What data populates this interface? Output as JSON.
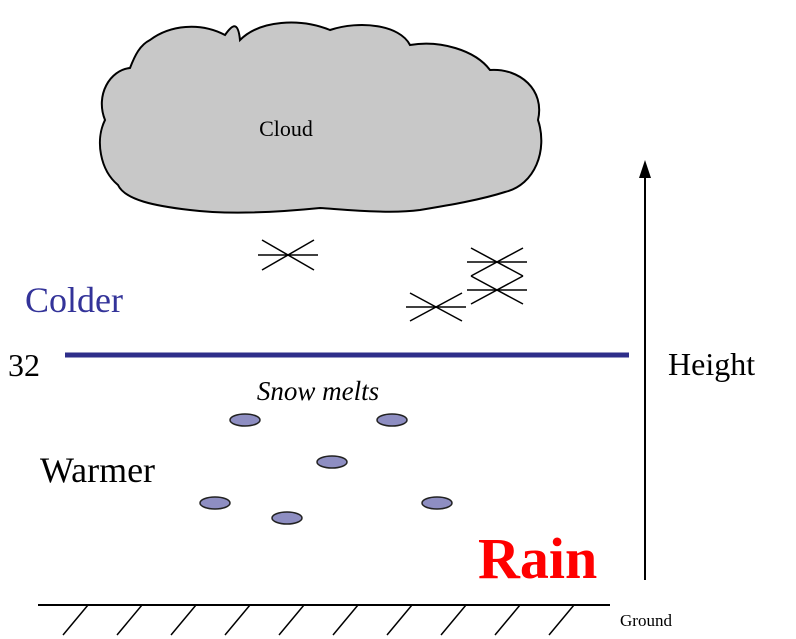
{
  "cloud": {
    "label": "Cloud"
  },
  "labels": {
    "colder": "Colder",
    "freezing": "32",
    "snow_melts": "Snow melts",
    "warmer": "Warmer",
    "rain": "Rain",
    "height": "Height",
    "ground": "Ground"
  }
}
